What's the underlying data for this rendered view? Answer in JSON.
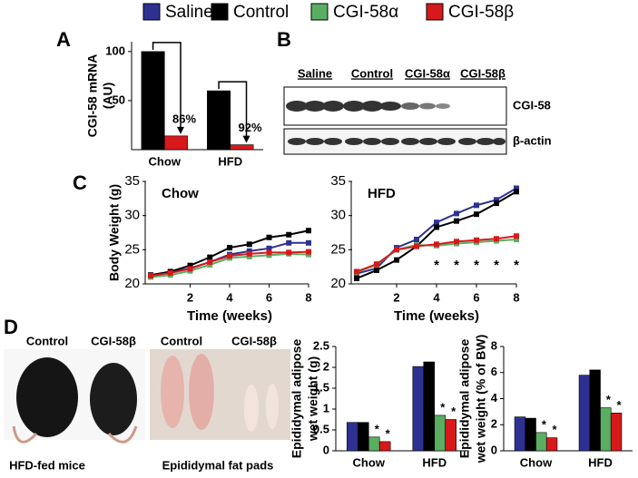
{
  "legend": [
    {
      "name": "Saline",
      "color": "#2e3192"
    },
    {
      "name": "Control",
      "color": "#000000"
    },
    {
      "name": "CGI-58α",
      "color": "#5aae61"
    },
    {
      "name": "CGI-58β",
      "color": "#d7191c"
    }
  ],
  "panels": [
    "A",
    "B",
    "C",
    "D"
  ],
  "blot": {
    "lanes": [
      "Saline",
      "Control",
      "CGI-58α",
      "CGI-58β"
    ],
    "rows": [
      "CGI-58",
      "β-actin"
    ]
  },
  "photos": [
    {
      "labels": [
        "Control",
        "CGI-58β"
      ],
      "caption": "HFD-fed mice"
    },
    {
      "labels": [
        "Control",
        "CGI-58β"
      ],
      "caption": "Epididymal fat pads"
    }
  ],
  "chart_data": [
    {
      "type": "bar",
      "ylabel": [
        "CGI-58 mRNA",
        "(AU)"
      ],
      "categories": [
        "Chow",
        "HFD"
      ],
      "series": [
        {
          "color": "#000000",
          "values": [
            100,
            60
          ]
        },
        {
          "color": "#d7191c",
          "values": [
            14,
            5
          ]
        }
      ],
      "annotations": [
        "86%",
        "92%"
      ],
      "ylim": [
        0,
        110
      ],
      "yticks": [
        50,
        100
      ]
    },
    {
      "type": "line",
      "title": "Chow",
      "ylabel": "Body Weight (g)",
      "xlabel": "Time (weeks)",
      "x": [
        0,
        1,
        2,
        3,
        4,
        5,
        6,
        7,
        8
      ],
      "series": [
        {
          "color": "#2e3192",
          "values": [
            21.2,
            21.7,
            22.3,
            23.2,
            24.3,
            24.8,
            25.2,
            26.0,
            26.0
          ]
        },
        {
          "color": "#000000",
          "values": [
            21.3,
            21.8,
            22.7,
            23.9,
            25.3,
            25.8,
            26.8,
            27.2,
            27.8
          ]
        },
        {
          "color": "#5aae61",
          "values": [
            21.0,
            21.3,
            21.9,
            22.8,
            23.8,
            24.0,
            24.2,
            24.4,
            24.3
          ]
        },
        {
          "color": "#d7191c",
          "values": [
            21.2,
            21.6,
            22.2,
            23.2,
            24.1,
            24.4,
            24.6,
            24.6,
            24.7
          ]
        }
      ],
      "xlim": [
        0,
        8
      ],
      "xticks": [
        2,
        4,
        6,
        8
      ],
      "ylim": [
        20,
        35
      ],
      "yticks": [
        20,
        25,
        30,
        35
      ]
    },
    {
      "type": "line",
      "title": "HFD",
      "xlabel": "Time (weeks)",
      "x": [
        0,
        1,
        2,
        3,
        4,
        5,
        6,
        7,
        8
      ],
      "series": [
        {
          "color": "#2e3192",
          "values": [
            21.5,
            22.3,
            25.3,
            26.5,
            29.0,
            30.3,
            31.5,
            32.3,
            34.0
          ]
        },
        {
          "color": "#000000",
          "values": [
            20.8,
            22.0,
            23.5,
            25.5,
            28.3,
            29.2,
            30.2,
            31.8,
            33.5
          ]
        },
        {
          "color": "#5aae61",
          "values": [
            21.7,
            22.8,
            25.0,
            25.7,
            25.6,
            25.9,
            26.1,
            26.3,
            26.5
          ]
        },
        {
          "color": "#d7191c",
          "values": [
            21.8,
            22.9,
            25.0,
            25.5,
            25.8,
            26.2,
            26.4,
            26.6,
            27.0
          ]
        }
      ],
      "annotations": [
        {
          "x": 4,
          "text": "*"
        },
        {
          "x": 5,
          "text": "*"
        },
        {
          "x": 6,
          "text": "*"
        },
        {
          "x": 7,
          "text": "*"
        },
        {
          "x": 8,
          "text": "*"
        }
      ],
      "xlim": [
        0,
        8
      ],
      "xticks": [
        2,
        4,
        6,
        8
      ],
      "ylim": [
        20,
        35
      ],
      "yticks": [
        20,
        25,
        30,
        35
      ]
    },
    {
      "type": "bar",
      "ylabel": [
        "Epididymal adipose",
        "wet weight (g)"
      ],
      "categories": [
        "Chow",
        "HFD"
      ],
      "series": [
        {
          "color": "#2e3192",
          "values": [
            0.68,
            2.02
          ]
        },
        {
          "color": "#000000",
          "values": [
            0.68,
            2.13
          ]
        },
        {
          "color": "#5aae61",
          "values": [
            0.33,
            0.85
          ],
          "annotations": [
            "*",
            "*"
          ]
        },
        {
          "color": "#d7191c",
          "values": [
            0.22,
            0.75
          ],
          "annotations": [
            "*",
            "*"
          ]
        }
      ],
      "ylim": [
        0,
        2.5
      ],
      "yticks": [
        0,
        0.5,
        1,
        1.5,
        2,
        2.5
      ]
    },
    {
      "type": "bar",
      "ylabel": [
        "Epididymal adipose",
        "wet weight (% of BW)"
      ],
      "categories": [
        "Chow",
        "HFD"
      ],
      "series": [
        {
          "color": "#2e3192",
          "values": [
            2.6,
            5.8
          ]
        },
        {
          "color": "#000000",
          "values": [
            2.5,
            6.2
          ]
        },
        {
          "color": "#5aae61",
          "values": [
            1.4,
            3.3
          ],
          "annotations": [
            "*",
            "*"
          ]
        },
        {
          "color": "#d7191c",
          "values": [
            1.0,
            2.9
          ],
          "annotations": [
            "*",
            "*"
          ]
        }
      ],
      "ylim": [
        0,
        8
      ],
      "yticks": [
        0,
        2,
        4,
        6,
        8
      ]
    }
  ]
}
